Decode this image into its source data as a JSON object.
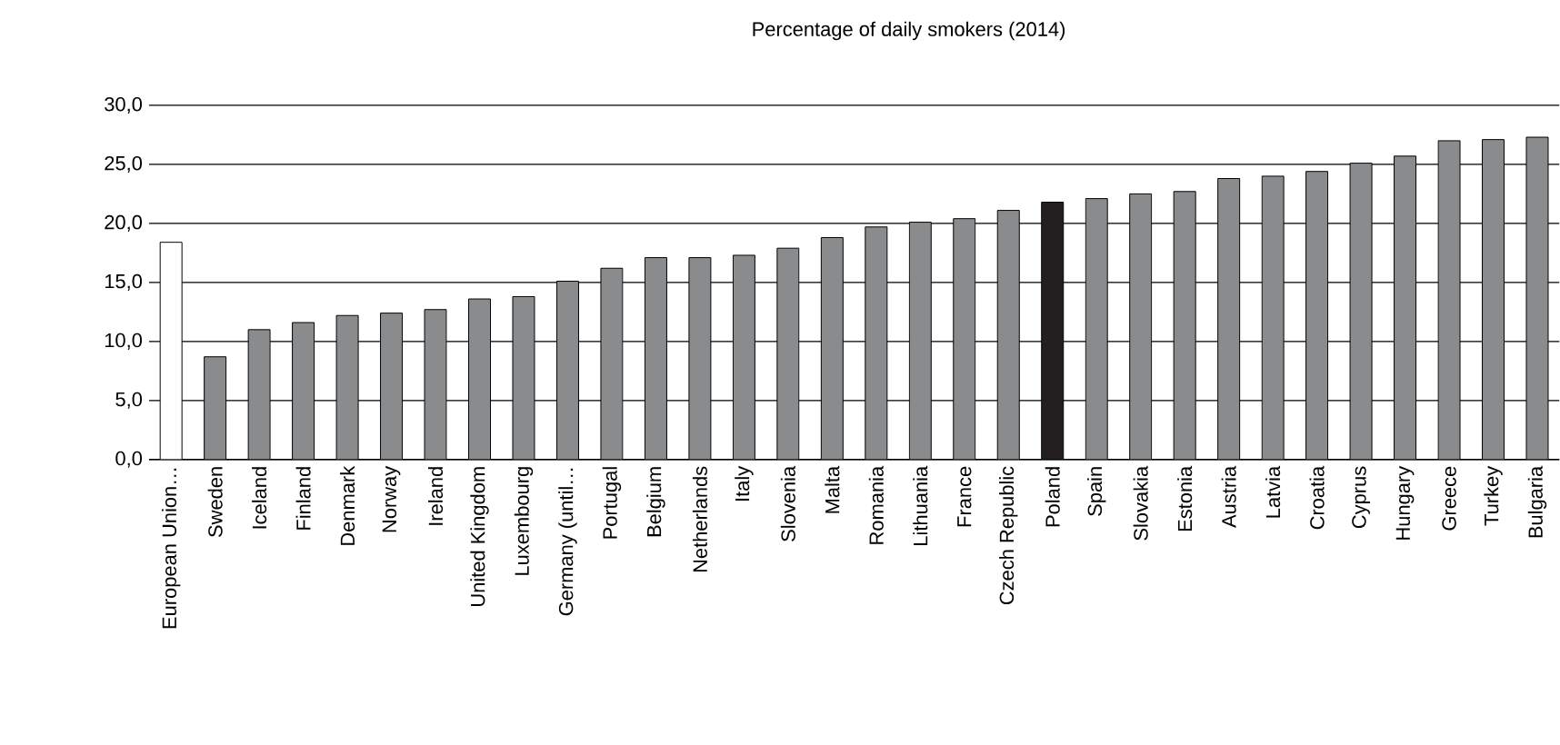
{
  "chart_data": {
    "type": "bar",
    "title": "Percentage of daily smokers (2014)",
    "categories": [
      "European Union…",
      "Sweden",
      "Iceland",
      "Finland",
      "Denmark",
      "Norway",
      "Ireland",
      "United Kingdom",
      "Luxembourg",
      "Germany (until…",
      "Portugal",
      "Belgium",
      "Netherlands",
      "Italy",
      "Slovenia",
      "Malta",
      "Romania",
      "Lithuania",
      "France",
      "Czech Republic",
      "Poland",
      "Spain",
      "Slovakia",
      "Estonia",
      "Austria",
      "Latvia",
      "Croatia",
      "Cyprus",
      "Hungary",
      "Greece",
      "Turkey",
      "Bulgaria"
    ],
    "values": [
      18.4,
      8.7,
      11.0,
      11.6,
      12.2,
      12.4,
      12.7,
      13.6,
      13.8,
      15.1,
      16.2,
      17.1,
      17.1,
      17.3,
      17.9,
      18.8,
      19.7,
      20.1,
      20.4,
      21.1,
      21.8,
      22.1,
      22.5,
      22.7,
      23.8,
      24.0,
      24.4,
      25.1,
      25.7,
      27.0,
      27.1,
      27.3
    ],
    "colors": [
      "#ffffff",
      "#8a8b8d",
      "#8a8b8d",
      "#8a8b8d",
      "#8a8b8d",
      "#8a8b8d",
      "#8a8b8d",
      "#8a8b8d",
      "#8a8b8d",
      "#8a8b8d",
      "#8a8b8d",
      "#8a8b8d",
      "#8a8b8d",
      "#8a8b8d",
      "#8a8b8d",
      "#8a8b8d",
      "#8a8b8d",
      "#8a8b8d",
      "#8a8b8d",
      "#8a8b8d",
      "#231f20",
      "#8a8b8d",
      "#8a8b8d",
      "#8a8b8d",
      "#8a8b8d",
      "#8a8b8d",
      "#8a8b8d",
      "#8a8b8d",
      "#8a8b8d",
      "#8a8b8d",
      "#8a8b8d",
      "#8a8b8d"
    ],
    "ylim": [
      0,
      30
    ],
    "yticks": [
      {
        "value": 0,
        "label": "0,0"
      },
      {
        "value": 5,
        "label": "5,0"
      },
      {
        "value": 10,
        "label": "10,0"
      },
      {
        "value": 15,
        "label": "15,0"
      },
      {
        "value": 20,
        "label": "20,0"
      },
      {
        "value": 25,
        "label": "25,0"
      },
      {
        "value": 30,
        "label": "30,0"
      }
    ],
    "grid": "y"
  }
}
